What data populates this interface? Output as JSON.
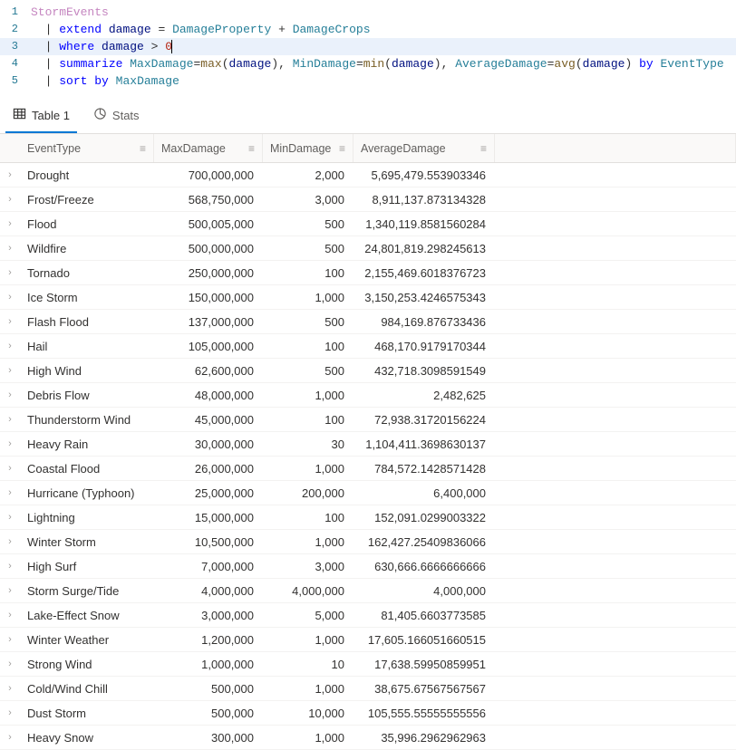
{
  "editor": {
    "lines": [
      {
        "n": "1",
        "highlight": false,
        "tokens": [
          {
            "t": "StormEvents",
            "c": "tok-table"
          }
        ]
      },
      {
        "n": "2",
        "highlight": false,
        "tokens": [
          {
            "t": "| ",
            "c": "tok-pipe"
          },
          {
            "t": "extend",
            "c": "tok-kw"
          },
          {
            "t": " ",
            "c": ""
          },
          {
            "t": "damage",
            "c": "tok-col"
          },
          {
            "t": " = ",
            "c": "tok-op"
          },
          {
            "t": "DamageProperty",
            "c": "tok-id"
          },
          {
            "t": " + ",
            "c": "tok-op"
          },
          {
            "t": "DamageCrops",
            "c": "tok-id"
          }
        ]
      },
      {
        "n": "3",
        "highlight": true,
        "cursor": true,
        "tokens": [
          {
            "t": "| ",
            "c": "tok-pipe"
          },
          {
            "t": "where",
            "c": "tok-kw"
          },
          {
            "t": " ",
            "c": ""
          },
          {
            "t": "damage",
            "c": "tok-col"
          },
          {
            "t": " > ",
            "c": "tok-op"
          },
          {
            "t": "0",
            "c": "tok-num"
          }
        ]
      },
      {
        "n": "4",
        "highlight": false,
        "tokens": [
          {
            "t": "| ",
            "c": "tok-pipe"
          },
          {
            "t": "summarize",
            "c": "tok-kw"
          },
          {
            "t": " ",
            "c": ""
          },
          {
            "t": "MaxDamage",
            "c": "tok-id"
          },
          {
            "t": "=",
            "c": "tok-op"
          },
          {
            "t": "max",
            "c": "tok-func"
          },
          {
            "t": "(",
            "c": "tok-op"
          },
          {
            "t": "damage",
            "c": "tok-col"
          },
          {
            "t": "), ",
            "c": "tok-op"
          },
          {
            "t": "MinDamage",
            "c": "tok-id"
          },
          {
            "t": "=",
            "c": "tok-op"
          },
          {
            "t": "min",
            "c": "tok-func"
          },
          {
            "t": "(",
            "c": "tok-op"
          },
          {
            "t": "damage",
            "c": "tok-col"
          },
          {
            "t": "), ",
            "c": "tok-op"
          },
          {
            "t": "AverageDamage",
            "c": "tok-id"
          },
          {
            "t": "=",
            "c": "tok-op"
          },
          {
            "t": "avg",
            "c": "tok-func"
          },
          {
            "t": "(",
            "c": "tok-op"
          },
          {
            "t": "damage",
            "c": "tok-col"
          },
          {
            "t": ") ",
            "c": "tok-op"
          },
          {
            "t": "by",
            "c": "tok-kw"
          },
          {
            "t": " ",
            "c": ""
          },
          {
            "t": "EventType",
            "c": "tok-id"
          }
        ]
      },
      {
        "n": "5",
        "highlight": false,
        "tokens": [
          {
            "t": "| ",
            "c": "tok-pipe"
          },
          {
            "t": "sort",
            "c": "tok-kw"
          },
          {
            "t": " ",
            "c": ""
          },
          {
            "t": "by",
            "c": "tok-kw"
          },
          {
            "t": " ",
            "c": ""
          },
          {
            "t": "MaxDamage",
            "c": "tok-id"
          }
        ]
      }
    ]
  },
  "tabs": {
    "table_label": "Table 1",
    "stats_label": "Stats"
  },
  "table": {
    "columns": [
      "EventType",
      "MaxDamage",
      "MinDamage",
      "AverageDamage"
    ],
    "rows": [
      [
        "Drought",
        "700,000,000",
        "2,000",
        "5,695,479.553903346"
      ],
      [
        "Frost/Freeze",
        "568,750,000",
        "3,000",
        "8,911,137.873134328"
      ],
      [
        "Flood",
        "500,005,000",
        "500",
        "1,340,119.8581560284"
      ],
      [
        "Wildfire",
        "500,000,000",
        "500",
        "24,801,819.298245613"
      ],
      [
        "Tornado",
        "250,000,000",
        "100",
        "2,155,469.6018376723"
      ],
      [
        "Ice Storm",
        "150,000,000",
        "1,000",
        "3,150,253.4246575343"
      ],
      [
        "Flash Flood",
        "137,000,000",
        "500",
        "984,169.876733436"
      ],
      [
        "Hail",
        "105,000,000",
        "100",
        "468,170.9179170344"
      ],
      [
        "High Wind",
        "62,600,000",
        "500",
        "432,718.3098591549"
      ],
      [
        "Debris Flow",
        "48,000,000",
        "1,000",
        "2,482,625"
      ],
      [
        "Thunderstorm Wind",
        "45,000,000",
        "100",
        "72,938.31720156224"
      ],
      [
        "Heavy Rain",
        "30,000,000",
        "30",
        "1,104,411.3698630137"
      ],
      [
        "Coastal Flood",
        "26,000,000",
        "1,000",
        "784,572.1428571428"
      ],
      [
        "Hurricane (Typhoon)",
        "25,000,000",
        "200,000",
        "6,400,000"
      ],
      [
        "Lightning",
        "15,000,000",
        "100",
        "152,091.0299003322"
      ],
      [
        "Winter Storm",
        "10,500,000",
        "1,000",
        "162,427.25409836066"
      ],
      [
        "High Surf",
        "7,000,000",
        "3,000",
        "630,666.6666666666"
      ],
      [
        "Storm Surge/Tide",
        "4,000,000",
        "4,000,000",
        "4,000,000"
      ],
      [
        "Lake-Effect Snow",
        "3,000,000",
        "5,000",
        "81,405.6603773585"
      ],
      [
        "Winter Weather",
        "1,200,000",
        "1,000",
        "17,605.166051660515"
      ],
      [
        "Strong Wind",
        "1,000,000",
        "10",
        "17,638.59950859951"
      ],
      [
        "Cold/Wind Chill",
        "500,000",
        "1,000",
        "38,675.67567567567"
      ],
      [
        "Dust Storm",
        "500,000",
        "10,000",
        "105,555.55555555556"
      ],
      [
        "Heavy Snow",
        "300,000",
        "1,000",
        "35,996.2962962963"
      ]
    ]
  }
}
